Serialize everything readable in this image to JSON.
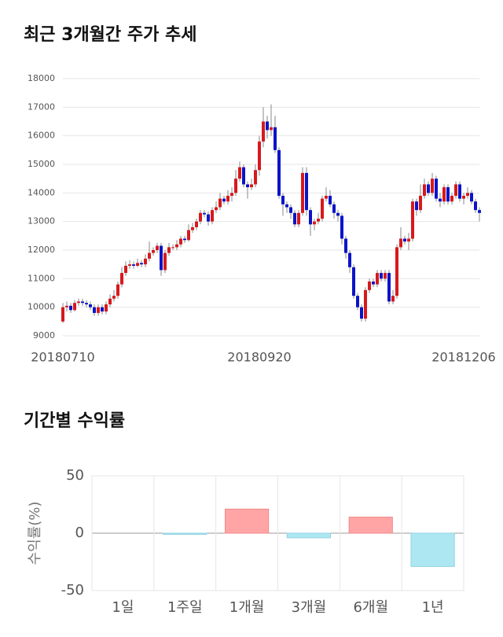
{
  "chart_data": [
    {
      "type": "candlestick",
      "title": "최근 3개월간 주가 추세",
      "categories": [
        "20180710",
        null,
        null,
        null,
        null,
        null,
        null,
        null,
        null,
        null,
        null,
        null,
        null,
        null,
        null,
        null,
        null,
        null,
        null,
        null,
        null,
        null,
        null,
        null,
        null,
        null,
        null,
        null,
        null,
        null,
        null,
        null,
        null,
        null,
        null,
        null,
        null,
        null,
        null,
        null,
        null,
        null,
        null,
        null,
        null,
        null,
        null,
        null,
        null,
        null,
        "20180920",
        null,
        null,
        null,
        null,
        null,
        null,
        null,
        null,
        null,
        null,
        null,
        null,
        null,
        null,
        null,
        null,
        null,
        null,
        null,
        null,
        null,
        null,
        null,
        null,
        null,
        null,
        null,
        null,
        null,
        null,
        null,
        null,
        null,
        null,
        null,
        null,
        null,
        null,
        null,
        null,
        null,
        null,
        null,
        null,
        null,
        null,
        null,
        null,
        null,
        null,
        null,
        "20181206",
        null,
        null,
        null,
        null
      ],
      "open": [
        9500,
        10000,
        10050,
        9900,
        10150,
        10200,
        10150,
        10100,
        10000,
        9800,
        10000,
        9850,
        10100,
        10300,
        10400,
        10800,
        11200,
        11450,
        11500,
        11450,
        11550,
        11500,
        11700,
        11900,
        12000,
        12150,
        11300,
        11900,
        12100,
        12100,
        12200,
        12400,
        12350,
        12700,
        12800,
        13000,
        13300,
        13250,
        13000,
        13400,
        13500,
        13800,
        13700,
        13900,
        14000,
        14500,
        14900,
        14300,
        14200,
        14300,
        14800,
        15800,
        16500,
        16200,
        16300,
        15500,
        13900,
        13600,
        13500,
        13300,
        12900,
        13300,
        14700,
        13400,
        12900,
        13000,
        13100,
        13800,
        13900,
        13600,
        13300,
        13200,
        12400,
        11900,
        11400,
        10400,
        10000,
        9600,
        10600,
        10900,
        10800,
        11200,
        11000,
        11200,
        10200,
        10400,
        12100,
        12400,
        12300,
        12400,
        13700,
        13400,
        13900,
        14300,
        14000,
        14500,
        13800,
        13700,
        14200,
        13700,
        13900,
        14300,
        13800,
        13900,
        14000,
        13700,
        13400
      ],
      "high": [
        10150,
        10200,
        10150,
        10250,
        10300,
        10300,
        10250,
        10200,
        10100,
        10100,
        10100,
        10200,
        10450,
        10600,
        10900,
        11400,
        11600,
        11650,
        11600,
        11700,
        11650,
        11850,
        12300,
        12100,
        12250,
        12250,
        12000,
        12250,
        12200,
        12350,
        12500,
        12500,
        12900,
        12950,
        13100,
        13400,
        13400,
        13350,
        13500,
        13700,
        14000,
        13900,
        14100,
        14200,
        14800,
        15100,
        15000,
        14400,
        14500,
        15000,
        16000,
        17000,
        16700,
        17100,
        16700,
        15600,
        14000,
        13700,
        13600,
        13400,
        13400,
        14900,
        14900,
        13500,
        13100,
        13300,
        13900,
        14200,
        14100,
        13700,
        13400,
        13300,
        12500,
        12000,
        11500,
        10500,
        10100,
        10700,
        11000,
        11000,
        11300,
        11300,
        11300,
        11300,
        10600,
        12200,
        12800,
        12500,
        12600,
        13800,
        13800,
        14300,
        14500,
        14400,
        14700,
        14600,
        14000,
        14300,
        14300,
        14000,
        14400,
        14400,
        14000,
        14200,
        14100,
        13800,
        13500
      ],
      "low": [
        9450,
        9850,
        9800,
        9850,
        10050,
        10050,
        10000,
        9900,
        9700,
        9700,
        9750,
        9750,
        10000,
        10200,
        10300,
        10700,
        11100,
        11350,
        11350,
        11400,
        11400,
        11400,
        11600,
        11800,
        11900,
        11100,
        11200,
        11800,
        12000,
        12000,
        12100,
        12250,
        12300,
        12600,
        12700,
        12900,
        13150,
        12850,
        12900,
        13300,
        13400,
        13600,
        13600,
        13700,
        13900,
        14400,
        14200,
        13800,
        14100,
        14200,
        14600,
        15600,
        15900,
        16000,
        15400,
        13800,
        13200,
        13300,
        13100,
        12800,
        12800,
        13200,
        13200,
        12500,
        12700,
        12900,
        13000,
        13700,
        13500,
        13100,
        13000,
        12200,
        11700,
        11200,
        10300,
        9900,
        9500,
        9500,
        10500,
        10700,
        10700,
        10900,
        10900,
        10100,
        10100,
        10300,
        12000,
        12200,
        12000,
        12300,
        13200,
        13300,
        13800,
        13900,
        13900,
        13700,
        13500,
        13600,
        13600,
        13600,
        13800,
        13700,
        13600,
        13800,
        13600,
        13300,
        13000
      ],
      "close": [
        10000,
        10050,
        9900,
        10150,
        10200,
        10150,
        10100,
        10000,
        9800,
        10000,
        9850,
        10100,
        10300,
        10400,
        10800,
        11200,
        11450,
        11500,
        11450,
        11550,
        11500,
        11700,
        11900,
        12000,
        12150,
        11300,
        11900,
        12100,
        12100,
        12200,
        12400,
        12350,
        12700,
        12800,
        13000,
        13300,
        13250,
        13000,
        13400,
        13500,
        13800,
        13700,
        13900,
        14000,
        14500,
        14900,
        14300,
        14200,
        14300,
        14800,
        15800,
        16500,
        16200,
        16300,
        15500,
        13900,
        13600,
        13500,
        13300,
        12900,
        13300,
        14700,
        13400,
        12900,
        13000,
        13100,
        13800,
        13900,
        13600,
        13300,
        13200,
        12400,
        11900,
        11400,
        10400,
        10000,
        9600,
        10600,
        10900,
        10800,
        11200,
        11000,
        11200,
        10200,
        10400,
        12100,
        12400,
        12300,
        12400,
        13700,
        13400,
        13900,
        14300,
        14000,
        14500,
        13800,
        13700,
        14200,
        13700,
        13900,
        14300,
        13800,
        13900,
        14000,
        13700,
        13400,
        13300
      ],
      "up_color": "#d7191c",
      "down_color": "#0a14c8",
      "ylim": [
        9000,
        18000
      ],
      "yticks": [
        9000,
        10000,
        11000,
        12000,
        13000,
        14000,
        15000,
        16000,
        17000,
        18000
      ],
      "grid": true
    },
    {
      "type": "bar",
      "title": "기간별 수익률",
      "ylabel": "수익률(%)",
      "categories": [
        "1일",
        "1주일",
        "1개월",
        "3개월",
        "6개월",
        "1년"
      ],
      "values": [
        0,
        -1,
        21,
        -4,
        14,
        -29
      ],
      "positive_color": "#ffa5a5",
      "negative_color": "#ade8f2",
      "ylim": [
        -50,
        50
      ],
      "yticks": [
        -50,
        0,
        50
      ],
      "grid": true
    }
  ]
}
